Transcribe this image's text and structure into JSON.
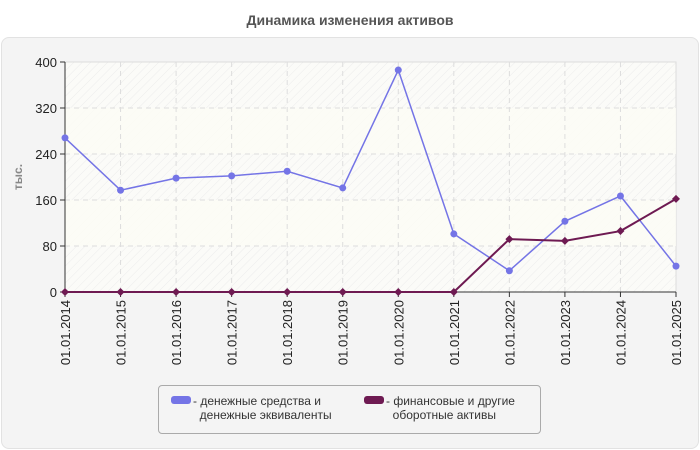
{
  "title": "Динамика изменения активов",
  "chart_data": {
    "type": "line",
    "title": "Динамика изменения активов",
    "xlabel": "",
    "ylabel": "тыс.",
    "ylim": [
      0,
      400
    ],
    "yticks": [
      0,
      80,
      160,
      240,
      320,
      400
    ],
    "grid": true,
    "legend_position": "bottom",
    "categories": [
      "01.01.2014",
      "01.01.2015",
      "01.01.2016",
      "01.01.2017",
      "01.01.2018",
      "01.01.2019",
      "01.01.2020",
      "01.01.2021",
      "01.01.2022",
      "01.01.2023",
      "01.01.2024",
      "01.01.2025"
    ],
    "series": [
      {
        "name": "денежные средства и денежные эквиваленты",
        "color": "#7474e6",
        "values": [
          268,
          177,
          198,
          202,
          210,
          181,
          386,
          101,
          37,
          123,
          167,
          45
        ]
      },
      {
        "name": "финансовые и другие оборотные активы",
        "color": "#6e1a52",
        "values": [
          0,
          0,
          0,
          0,
          0,
          0,
          0,
          0,
          92,
          89,
          106,
          162
        ]
      }
    ]
  },
  "legend": {
    "items": [
      {
        "label": "- денежные средства и\n  денежные эквиваленты",
        "color": "#7474e6"
      },
      {
        "label": "- финансовые и другие\n  оборотные активы",
        "color": "#6e1a52"
      }
    ]
  }
}
